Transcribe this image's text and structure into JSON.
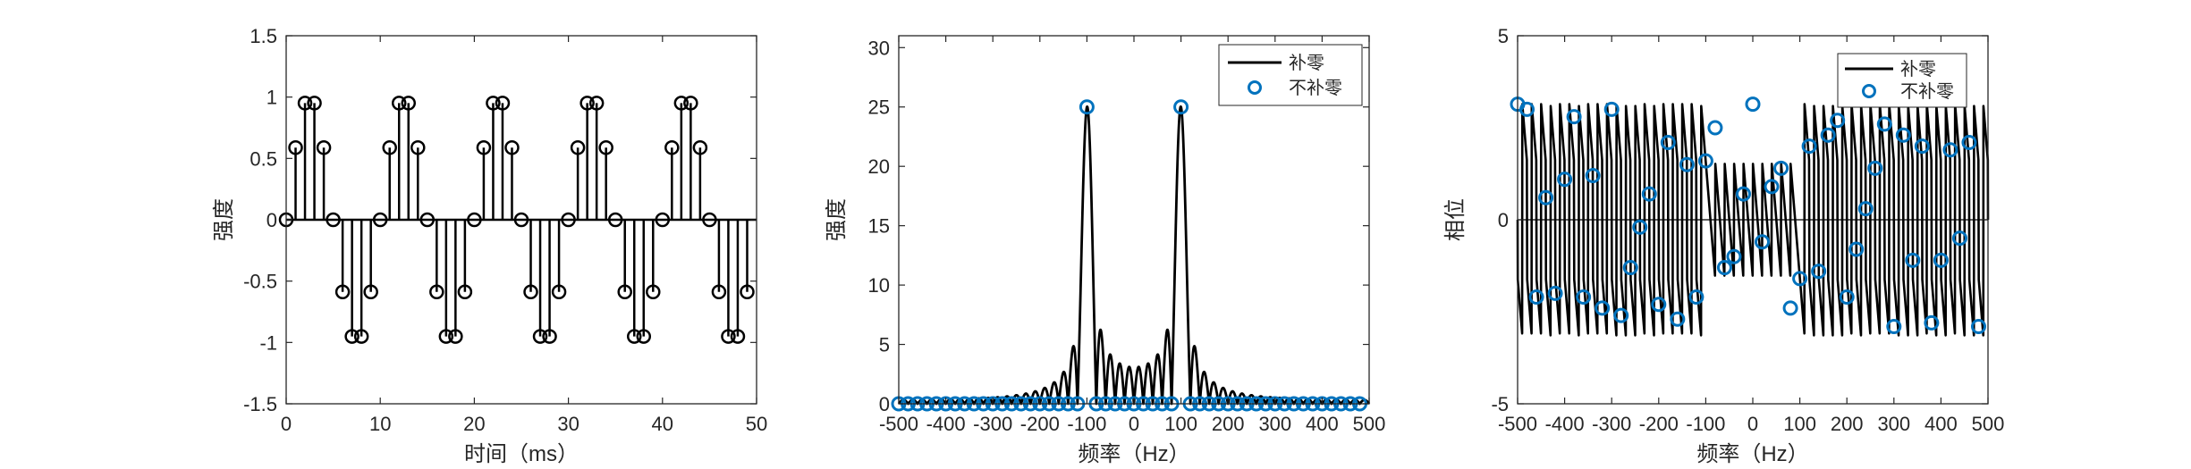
{
  "figure": {
    "background": "#ffffff",
    "axis_color": "#262626",
    "line_color": "#000000",
    "marker_color": "#0072bd"
  },
  "chart_data": [
    {
      "type": "stem",
      "title": "",
      "xlabel": "时间（ms）",
      "ylabel": "强度",
      "xlim": [
        0,
        50
      ],
      "ylim": [
        -1.5,
        1.5
      ],
      "xticks": [
        0,
        10,
        20,
        30,
        40,
        50
      ],
      "yticks": [
        -1.5,
        -1,
        -0.5,
        0,
        0.5,
        1,
        1.5
      ],
      "ytick_labels": [
        "-1.5",
        "-1",
        "-0.5",
        "0",
        "0.5",
        "1",
        "1.5"
      ],
      "x": [
        0,
        1,
        2,
        3,
        4,
        5,
        6,
        7,
        8,
        9,
        10,
        11,
        12,
        13,
        14,
        15,
        16,
        17,
        18,
        19,
        20,
        21,
        22,
        23,
        24,
        25,
        26,
        27,
        28,
        29,
        30,
        31,
        32,
        33,
        34,
        35,
        36,
        37,
        38,
        39,
        40,
        41,
        42,
        43,
        44,
        45,
        46,
        47,
        48,
        49
      ],
      "y": [
        0,
        0.588,
        0.951,
        0.951,
        0.588,
        0,
        -0.588,
        -0.951,
        -0.951,
        -0.588,
        0,
        0.588,
        0.951,
        0.951,
        0.588,
        0,
        -0.588,
        -0.951,
        -0.951,
        -0.588,
        0,
        0.588,
        0.951,
        0.951,
        0.588,
        0,
        -0.588,
        -0.951,
        -0.951,
        -0.588,
        0,
        0.588,
        0.951,
        0.951,
        0.588,
        0,
        -0.588,
        -0.951,
        -0.951,
        -0.588,
        0,
        0.588,
        0.951,
        0.951,
        0.588,
        0,
        -0.588,
        -0.951,
        -0.951,
        -0.588
      ],
      "baseline": 0,
      "grid": false
    },
    {
      "type": "line",
      "title": "",
      "xlabel": "频率（Hz）",
      "ylabel": "强度",
      "xlim": [
        -500,
        500
      ],
      "ylim": [
        0,
        31
      ],
      "xticks": [
        -500,
        -400,
        -300,
        -200,
        -100,
        0,
        100,
        200,
        300,
        400,
        500
      ],
      "yticks": [
        0,
        5,
        10,
        15,
        20,
        25,
        30
      ],
      "grid": false,
      "legend": {
        "position": "top-right"
      },
      "series": [
        {
          "name": "补零",
          "style": "line",
          "peak_hz": [
            -100,
            100
          ],
          "peak_value": 25,
          "note": "zero-padded magnitude spectrum |DTFT| of 50-sample 100 Hz sine sampled at 1000 Hz"
        },
        {
          "name": "不补零",
          "style": "markers",
          "x": [
            -500,
            -480,
            -460,
            -440,
            -420,
            -400,
            -380,
            -360,
            -340,
            -320,
            -300,
            -280,
            -260,
            -240,
            -220,
            -200,
            -180,
            -160,
            -140,
            -120,
            -100,
            -80,
            -60,
            -40,
            -20,
            0,
            20,
            40,
            60,
            80,
            100,
            120,
            140,
            160,
            180,
            200,
            220,
            240,
            260,
            280,
            300,
            320,
            340,
            360,
            380,
            400,
            420,
            440,
            460,
            480
          ],
          "values": [
            0,
            0,
            0,
            0,
            0,
            0,
            0,
            0,
            0,
            0,
            0,
            0,
            0,
            0,
            0,
            0,
            0,
            0,
            0,
            0,
            25,
            0,
            0,
            0,
            0,
            0,
            0,
            0,
            0,
            0,
            25,
            0,
            0,
            0,
            0,
            0,
            0,
            0,
            0,
            0,
            0,
            0,
            0,
            0,
            0,
            0,
            0,
            0,
            0,
            0
          ]
        }
      ]
    },
    {
      "type": "line",
      "title": "",
      "xlabel": "频率（Hz）",
      "ylabel": "相位",
      "xlim": [
        -500,
        500
      ],
      "ylim": [
        -5,
        5
      ],
      "xticks": [
        -500,
        -400,
        -300,
        -200,
        -100,
        0,
        100,
        200,
        300,
        400,
        500
      ],
      "yticks": [
        -5,
        0,
        5
      ],
      "grid": false,
      "zero_line": true,
      "legend": {
        "position": "top-right"
      },
      "series": [
        {
          "name": "补零",
          "style": "line",
          "note": "rapidly oscillating phase between about -3 and 3 rad"
        },
        {
          "name": "不补零",
          "style": "markers",
          "x": [
            -500,
            -480,
            -460,
            -440,
            -420,
            -400,
            -380,
            -360,
            -340,
            -320,
            -300,
            -280,
            -260,
            -240,
            -220,
            -200,
            -180,
            -160,
            -140,
            -120,
            -100,
            -80,
            -60,
            -40,
            -20,
            0,
            20,
            40,
            60,
            80,
            100,
            120,
            140,
            160,
            180,
            200,
            220,
            240,
            260,
            280,
            300,
            320,
            340,
            360,
            380,
            400,
            420,
            440,
            460,
            480
          ],
          "values": [
            3.14,
            3.0,
            -2.1,
            0.6,
            -2.0,
            1.1,
            2.8,
            -2.1,
            1.2,
            -2.4,
            3.0,
            -2.6,
            -1.3,
            -0.2,
            0.7,
            -2.3,
            2.1,
            -2.7,
            1.5,
            -2.1,
            1.6,
            2.5,
            -1.3,
            -1.0,
            0.7,
            3.14,
            -0.6,
            0.9,
            1.4,
            -2.4,
            -1.6,
            2.0,
            -1.4,
            2.3,
            2.7,
            -2.1,
            -0.8,
            0.3,
            1.4,
            2.6,
            -2.9,
            2.3,
            -1.1,
            2.0,
            -2.8,
            -1.1,
            1.9,
            -0.5,
            2.1,
            -2.9
          ]
        }
      ]
    }
  ]
}
